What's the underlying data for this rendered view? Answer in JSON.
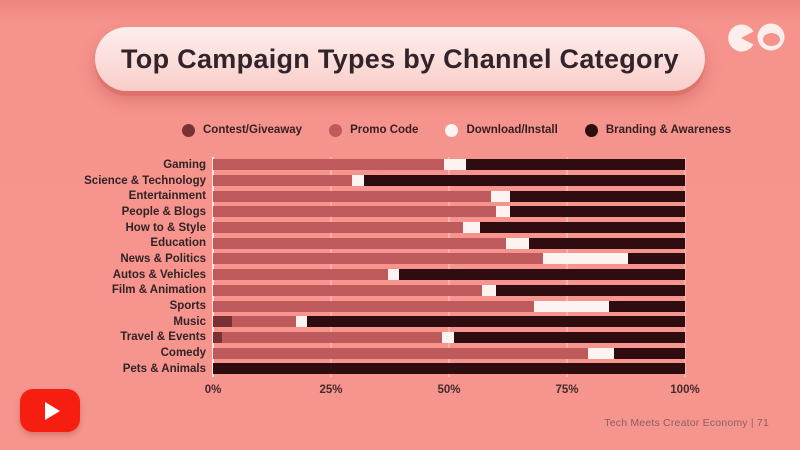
{
  "title": "Top Campaign Types by Channel Category",
  "legend": [
    {
      "label": "Contest/Giveaway",
      "color": "#7b3034"
    },
    {
      "label": "Promo Code",
      "color": "#bf5a5c"
    },
    {
      "label": "Download/Install",
      "color": "#fdf4f1"
    },
    {
      "label": "Branding & Awareness",
      "color": "#2f0c10"
    }
  ],
  "chart_data": {
    "type": "bar",
    "orientation": "horizontal",
    "stacked": true,
    "unit": "percent",
    "title": "Top Campaign Types by Channel Category",
    "categories": [
      "Gaming",
      "Science & Technology",
      "Entertainment",
      "People & Blogs",
      "How to & Style",
      "Education",
      "News & Politics",
      "Autos & Vehicles",
      "Film & Animation",
      "Sports",
      "Music",
      "Travel & Events",
      "Comedy",
      "Pets & Animals"
    ],
    "series": [
      {
        "name": "Contest/Giveaway",
        "color": "#7b3034",
        "values": [
          0,
          0,
          0,
          0,
          0,
          0,
          0,
          0,
          0,
          0,
          4,
          2,
          0,
          0
        ]
      },
      {
        "name": "Promo Code",
        "color": "#bf5a5c",
        "values": [
          49,
          29.5,
          59,
          60,
          53,
          62,
          70,
          37,
          57,
          68,
          13.5,
          46.5,
          79.5,
          0
        ]
      },
      {
        "name": "Download/Install",
        "color": "#fdf4f1",
        "values": [
          4.5,
          2.5,
          4,
          3,
          3.5,
          5,
          18,
          2.5,
          3,
          16,
          2.5,
          2.5,
          5.5,
          0
        ]
      },
      {
        "name": "Branding & Awareness",
        "color": "#2f0c10",
        "values": [
          46.5,
          68,
          37,
          37,
          43.5,
          33,
          12,
          60.5,
          40,
          16,
          80,
          49,
          15,
          100
        ]
      }
    ],
    "x_ticks": [
      "0%",
      "25%",
      "50%",
      "75%",
      "100%"
    ],
    "xlim": [
      0,
      100
    ],
    "grid": true,
    "legend_position": "top"
  },
  "axis": {
    "zero_line_color": "#fbe4e1",
    "gridline_color": "#f7b2ac"
  },
  "footer": {
    "text": "Tech Meets Creator Economy | 71"
  },
  "colors": {
    "background": "#f5938c",
    "banner": "#fbdbd8",
    "youtube_red": "#f61e10"
  }
}
